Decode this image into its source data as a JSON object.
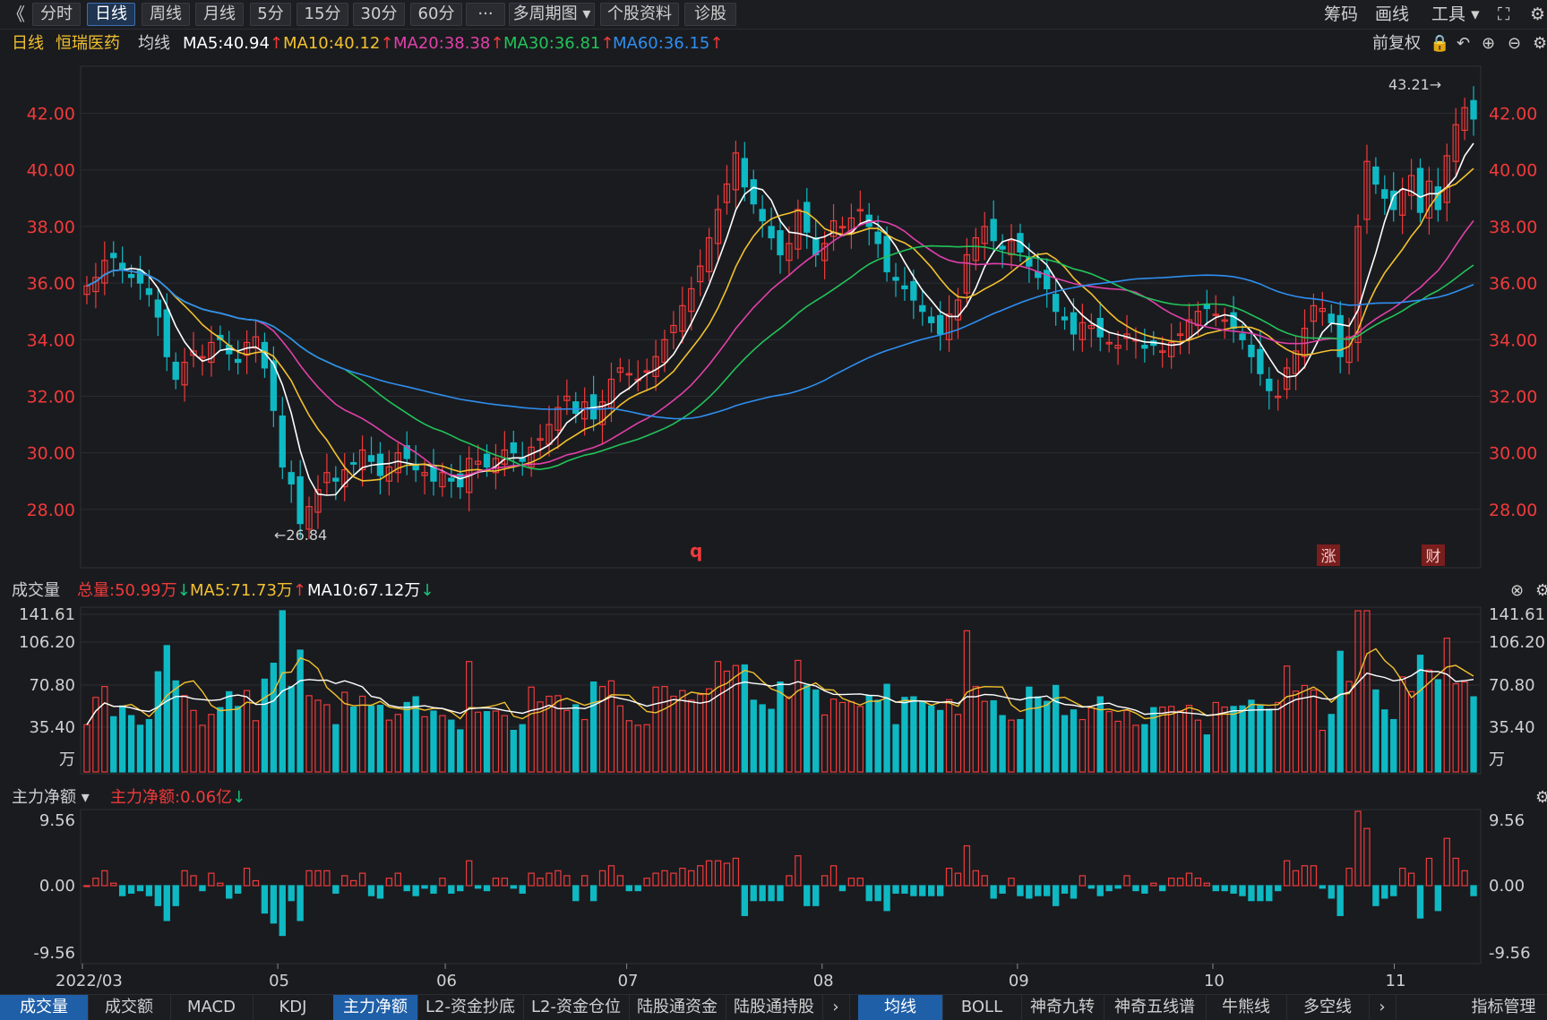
{
  "toolbar": {
    "back_icon": "double-chevron-left-icon",
    "buttons": [
      "分时",
      "日线",
      "周线",
      "月线",
      "5分",
      "15分",
      "30分",
      "60分",
      "···",
      "多周期图",
      "个股资料",
      "诊股"
    ],
    "active": "日线",
    "right": [
      "筹码",
      "画线",
      "工具"
    ],
    "fullscreen_icon": "expand-icon"
  },
  "ma_header": {
    "period": "日线",
    "stock_name": "恒瑞医药",
    "avg_label": "均线",
    "ma5": "MA5:40.94",
    "ma10": "MA10:40.12",
    "ma20": "MA20:38.38",
    "ma30": "MA30:36.81",
    "ma60": "MA60:36.15",
    "adjust": "前复权",
    "colors": {
      "ma5": "#ffffff",
      "ma10": "#f2c12e",
      "ma20": "#e040a8",
      "ma30": "#22c35a",
      "ma60": "#2e8ff0"
    }
  },
  "price_axis": {
    "ticks": [
      "42.00",
      "40.00",
      "38.00",
      "36.00",
      "34.00",
      "32.00",
      "30.00",
      "28.00"
    ]
  },
  "price_annotations": {
    "high": "43.21→",
    "low": "←26.84",
    "marker_q": "q",
    "badge_zhang": "涨",
    "badge_cai": "财"
  },
  "volume_panel": {
    "title": "成交量",
    "total": "总量:50.99万",
    "ma5": "MA5:71.73万",
    "ma10": "MA10:67.12万",
    "ticks": [
      "141.61",
      "106.20",
      "70.80",
      "35.40",
      "万"
    ]
  },
  "flow_panel": {
    "title": "主力净额",
    "value": "主力净额:0.06亿",
    "ticks": [
      "9.56",
      "0.00",
      "-9.56"
    ]
  },
  "x_axis": {
    "labels": [
      "2022/03",
      "05",
      "06",
      "07",
      "08",
      "09",
      "10",
      "11"
    ]
  },
  "bottom_tabs_left": [
    "成交量",
    "成交额",
    "MACD",
    "KDJ",
    "主力净额",
    "L2-资金抄底",
    "L2-资金仓位",
    "陆股通资金",
    "陆股通持股"
  ],
  "bottom_tabs_right": [
    "均线",
    "BOLL",
    "神奇九转",
    "神奇五线谱",
    "牛熊线",
    "多空线",
    "指标管理"
  ],
  "bottom_active_left": [
    "成交量",
    "主力净额"
  ],
  "bottom_active_right": [
    "均线"
  ],
  "chart_data": {
    "type": "candlestick",
    "dates": [
      "2022/03",
      "05",
      "06",
      "07",
      "08",
      "09",
      "10",
      "11"
    ],
    "price_range": [
      26.84,
      43.21
    ],
    "closes": [
      35.9,
      36.2,
      36.8,
      36.9,
      36.5,
      36.2,
      36.0,
      35.6,
      34.8,
      33.4,
      32.6,
      33.2,
      33.6,
      33.4,
      33.9,
      34.0,
      33.5,
      33.2,
      33.9,
      34.1,
      33.0,
      31.5,
      29.5,
      28.9,
      27.5,
      28.1,
      28.7,
      29.3,
      29.0,
      29.4,
      29.6,
      30.1,
      29.7,
      29.2,
      29.5,
      30.0,
      29.8,
      29.4,
      29.3,
      29.0,
      29.3,
      29.0,
      28.8,
      29.8,
      29.7,
      29.5,
      29.8,
      30.1,
      30.0,
      29.7,
      30.2,
      30.5,
      31.0,
      31.6,
      32.0,
      31.4,
      31.8,
      31.2,
      31.8,
      32.6,
      33.0,
      32.8,
      32.6,
      32.9,
      33.4,
      34.0,
      34.5,
      35.2,
      35.8,
      36.6,
      37.6,
      38.6,
      39.5,
      40.6,
      39.4,
      38.8,
      38.2,
      37.6,
      37.0,
      37.4,
      38.6,
      37.8,
      37.0,
      37.4,
      38.2,
      38.0,
      38.3,
      38.6,
      38.0,
      37.4,
      36.4,
      36.1,
      35.8,
      35.4,
      35.0,
      34.6,
      34.2,
      34.9,
      35.4,
      37.0,
      37.6,
      38.0,
      37.5,
      37.2,
      37.5,
      37.1,
      36.6,
      36.2,
      35.8,
      35.0,
      34.7,
      34.2,
      34.6,
      34.5,
      34.1,
      33.9,
      33.8,
      34.2,
      34.0,
      33.7,
      33.8,
      33.6,
      33.9,
      34.2,
      34.7,
      35.0,
      35.1,
      34.9,
      34.7,
      34.4,
      34.0,
      33.4,
      32.8,
      32.2,
      32.0,
      33.0,
      33.6,
      34.4,
      35.2,
      35.1,
      34.6,
      33.4,
      34.1,
      38.0,
      40.3,
      39.5,
      39.0,
      38.6,
      39.3,
      39.8,
      38.5,
      39.6,
      38.6,
      40.5,
      41.6,
      42.2,
      41.8
    ],
    "series": [
      {
        "name": "MA5",
        "last": 40.94
      },
      {
        "name": "MA10",
        "last": 40.12
      },
      {
        "name": "MA20",
        "last": 38.38
      },
      {
        "name": "MA30",
        "last": 36.81
      },
      {
        "name": "MA60",
        "last": 36.15
      }
    ],
    "volume_ylim": [
      0,
      141.61
    ],
    "flow_ylim": [
      -9.56,
      9.56
    ]
  }
}
